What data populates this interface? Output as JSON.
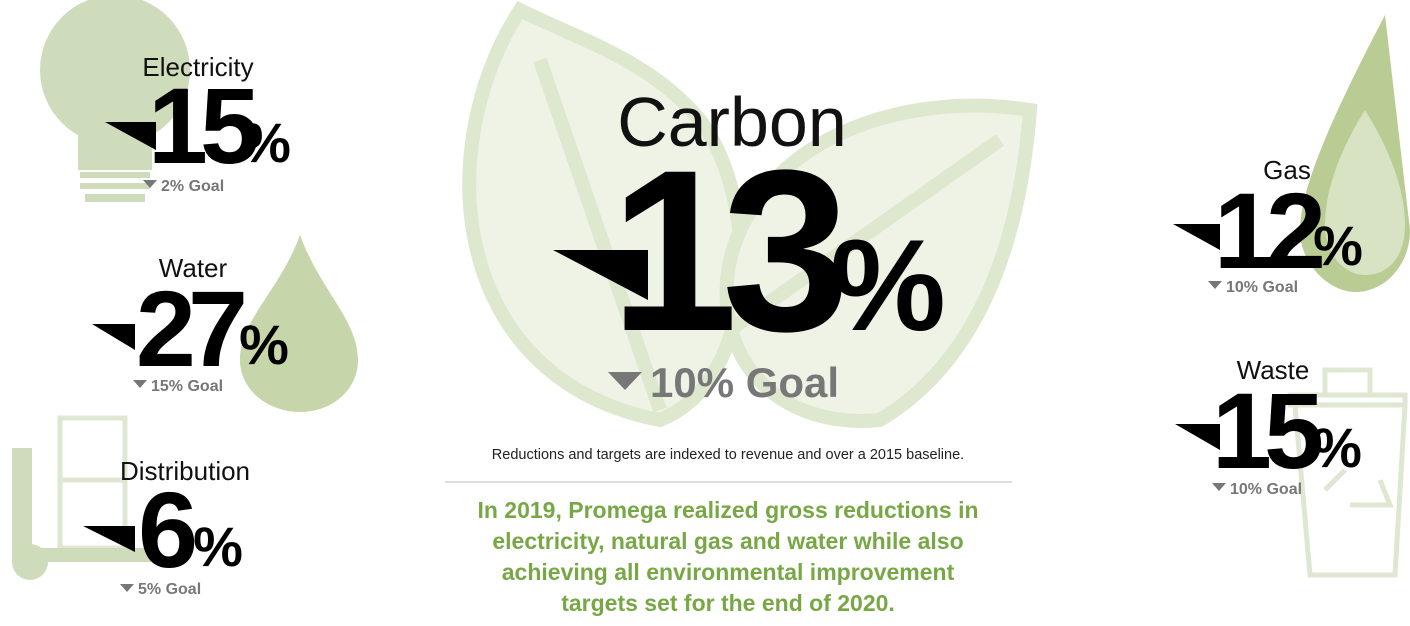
{
  "carbon": {
    "label": "Carbon",
    "value": "13",
    "unit": "%",
    "goal": "10% Goal"
  },
  "metrics": [
    {
      "label": "Electricity",
      "value": "15",
      "unit": "%",
      "goal": "2% Goal"
    },
    {
      "label": "Water",
      "value": "27",
      "unit": "%",
      "goal": "15% Goal"
    },
    {
      "label": "Distribution",
      "value": "6",
      "unit": "%",
      "goal": "5% Goal"
    },
    {
      "label": "Gas",
      "value": "12",
      "unit": "%",
      "goal": "10% Goal"
    },
    {
      "label": "Waste",
      "value": "15",
      "unit": "%",
      "goal": "10% Goal"
    }
  ],
  "footnote": "Reductions and targets are indexed to revenue and over a 2015 baseline.",
  "summary": [
    "In 2019, Promega realized gross reductions in",
    "electricity, natural gas and water while also",
    "achieving all environmental improvement",
    "targets set for the end of 2020."
  ]
}
